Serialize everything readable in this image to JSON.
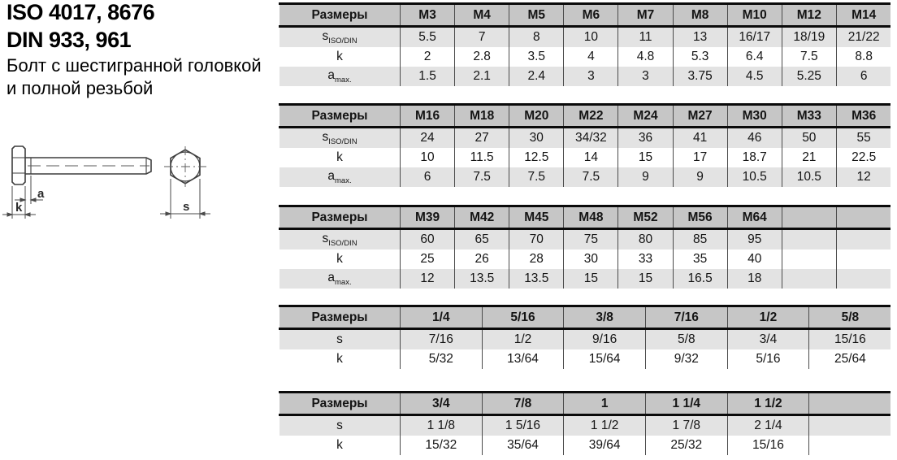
{
  "header": {
    "title_line1": "ISO 4017, 8676",
    "title_line2": "DIN 933, 961",
    "subtitle_line1": "Болт с шестигранной головкой",
    "subtitle_line2": "и полной резьбой"
  },
  "drawing": {
    "labels": {
      "a": "a",
      "k": "k",
      "s": "s"
    }
  },
  "colors": {
    "table_header_bg": "#c6c6c6",
    "table_shaded_row_bg": "#e3e3e3",
    "table_border": "#0a0a0a",
    "column_separator": "#4b4b4b",
    "drawing_line": "#3d3d3d"
  },
  "tables": [
    {
      "header_label": "Размеры",
      "columns": [
        "M3",
        "M4",
        "M5",
        "M6",
        "M7",
        "M8",
        "M10",
        "M12",
        "M14"
      ],
      "rows": [
        {
          "label_main": "s",
          "label_sub": "ISO/DIN",
          "values": [
            "5.5",
            "7",
            "8",
            "10",
            "11",
            "13",
            "16/17",
            "18/19",
            "21/22"
          ]
        },
        {
          "label_main": "k",
          "label_sub": "",
          "values": [
            "2",
            "2.8",
            "3.5",
            "4",
            "4.8",
            "5.3",
            "6.4",
            "7.5",
            "8.8"
          ]
        },
        {
          "label_main": "a",
          "label_sub": "max.",
          "values": [
            "1.5",
            "2.1",
            "2.4",
            "3",
            "3",
            "3.75",
            "4.5",
            "5.25",
            "6"
          ]
        }
      ]
    },
    {
      "header_label": "Размеры",
      "columns": [
        "M16",
        "M18",
        "M20",
        "M22",
        "M24",
        "M27",
        "M30",
        "M33",
        "M36"
      ],
      "rows": [
        {
          "label_main": "s",
          "label_sub": "ISO/DIN",
          "values": [
            "24",
            "27",
            "30",
            "34/32",
            "36",
            "41",
            "46",
            "50",
            "55"
          ]
        },
        {
          "label_main": "k",
          "label_sub": "",
          "values": [
            "10",
            "11.5",
            "12.5",
            "14",
            "15",
            "17",
            "18.7",
            "21",
            "22.5"
          ]
        },
        {
          "label_main": "a",
          "label_sub": "max.",
          "values": [
            "6",
            "7.5",
            "7.5",
            "7.5",
            "9",
            "9",
            "10.5",
            "10.5",
            "12"
          ]
        }
      ]
    },
    {
      "header_label": "Размеры",
      "columns": [
        "M39",
        "M42",
        "M45",
        "M48",
        "M52",
        "M56",
        "M64",
        "",
        ""
      ],
      "rows": [
        {
          "label_main": "s",
          "label_sub": "ISO/DIN",
          "values": [
            "60",
            "65",
            "70",
            "75",
            "80",
            "85",
            "95",
            "",
            ""
          ]
        },
        {
          "label_main": "k",
          "label_sub": "",
          "values": [
            "25",
            "26",
            "28",
            "30",
            "33",
            "35",
            "40",
            "",
            ""
          ]
        },
        {
          "label_main": "a",
          "label_sub": "max.",
          "values": [
            "12",
            "13.5",
            "13.5",
            "15",
            "15",
            "16.5",
            "18",
            "",
            ""
          ]
        }
      ]
    },
    {
      "header_label": "Размеры",
      "columns": [
        "1/4",
        "5/16",
        "3/8",
        "7/16",
        "1/2",
        "5/8"
      ],
      "rows": [
        {
          "label_main": "s",
          "label_sub": "",
          "values": [
            "7/16",
            "1/2",
            "9/16",
            "5/8",
            "3/4",
            "15/16"
          ]
        },
        {
          "label_main": "k",
          "label_sub": "",
          "values": [
            "5/32",
            "13/64",
            "15/64",
            "9/32",
            "5/16",
            "25/64"
          ]
        }
      ]
    },
    {
      "header_label": "Размеры",
      "columns": [
        "3/4",
        "7/8",
        "1",
        "1 1/4",
        "1 1/2",
        ""
      ],
      "rows": [
        {
          "label_main": "s",
          "label_sub": "",
          "values": [
            "1 1/8",
            "1 5/16",
            "1 1/2",
            "1 7/8",
            "2 1/4",
            ""
          ]
        },
        {
          "label_main": "k",
          "label_sub": "",
          "values": [
            "15/32",
            "35/64",
            "39/64",
            "25/32",
            "15/16",
            ""
          ]
        }
      ]
    }
  ]
}
